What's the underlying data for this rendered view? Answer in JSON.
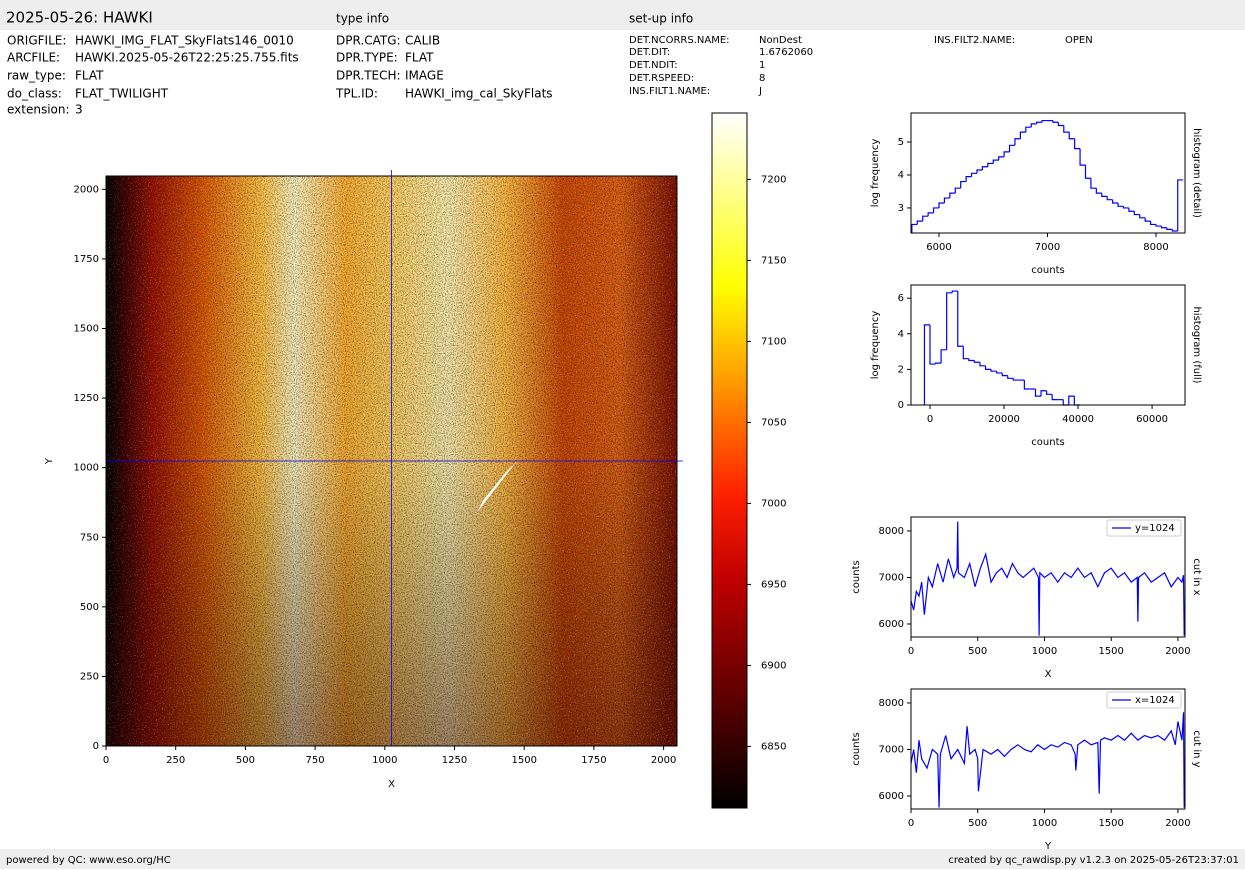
{
  "header": {
    "title": "2025-05-26: HAWKI",
    "type_info_title": "type info",
    "setup_info_title": "set-up info"
  },
  "file_info": [
    {
      "key": "ORIGFILE:",
      "value": "HAWKI_IMG_FLAT_SkyFlats146_0010"
    },
    {
      "key": "ARCFILE:",
      "value": "HAWKI.2025-05-26T22:25:25.755.fits"
    },
    {
      "key": "raw_type:",
      "value": "FLAT"
    },
    {
      "key": "do_class:",
      "value": "FLAT_TWILIGHT"
    },
    {
      "key": "extension:",
      "value": "3"
    }
  ],
  "type_info": [
    {
      "key": "DPR.CATG:",
      "value": "CALIB"
    },
    {
      "key": "DPR.TYPE:",
      "value": "FLAT"
    },
    {
      "key": "DPR.TECH:",
      "value": "IMAGE"
    },
    {
      "key": "TPL.ID:",
      "value": "HAWKI_img_cal_SkyFlats"
    }
  ],
  "setup_info": [
    {
      "key": "DET.NCORRS.NAME:",
      "value": "NonDest"
    },
    {
      "key": "DET.DIT:",
      "value": "1.6762060"
    },
    {
      "key": "DET.NDIT:",
      "value": "1"
    },
    {
      "key": "DET.RSPEED:",
      "value": "8"
    },
    {
      "key": "INS.FILT1.NAME:",
      "value": "J"
    },
    {
      "key": "INS.FILT2.NAME:",
      "value": "OPEN"
    }
  ],
  "chart_data": [
    {
      "type": "image",
      "xlabel": "X",
      "ylabel": "Y",
      "xlim": [
        0,
        2048
      ],
      "ylim": [
        0,
        2048
      ],
      "xticks": [
        0,
        250,
        500,
        750,
        1000,
        1250,
        1500,
        1750,
        2000
      ],
      "yticks": [
        0,
        250,
        500,
        750,
        1000,
        1250,
        1500,
        1750,
        2000
      ],
      "crosshair_x": 1024,
      "crosshair_y": 1024,
      "crosshair_color": "#0000ff",
      "colormap": "hot",
      "zlim": [
        6812,
        7241
      ],
      "zticks": [
        6850,
        6900,
        6950,
        7000,
        7050,
        7100,
        7150,
        7200
      ]
    },
    {
      "type": "histogram",
      "xlabel": "counts",
      "ylabel": "log frequency",
      "side_label": "histogram (detail)",
      "color": "#0000ff",
      "xlim": [
        5742,
        8267
      ],
      "ylim": [
        2.24,
        5.88
      ],
      "xticks": [
        6000,
        7000,
        8000
      ],
      "yticks": [
        3,
        4,
        5
      ],
      "bins": [
        5750,
        5800,
        5850,
        5900,
        5950,
        6000,
        6050,
        6100,
        6150,
        6200,
        6250,
        6300,
        6350,
        6400,
        6450,
        6500,
        6550,
        6600,
        6650,
        6700,
        6750,
        6800,
        6850,
        6900,
        6950,
        7000,
        7050,
        7100,
        7150,
        7200,
        7250,
        7300,
        7350,
        7400,
        7450,
        7500,
        7550,
        7600,
        7650,
        7700,
        7750,
        7800,
        7850,
        7900,
        7950,
        8000,
        8050,
        8100,
        8150,
        8200,
        8250
      ],
      "counts": [
        2.5,
        2.6,
        2.75,
        2.85,
        3.0,
        3.15,
        3.3,
        3.45,
        3.6,
        3.8,
        3.95,
        4.05,
        4.15,
        4.25,
        4.35,
        4.45,
        4.55,
        4.7,
        4.9,
        5.1,
        5.3,
        5.45,
        5.55,
        5.6,
        5.65,
        5.65,
        5.6,
        5.5,
        5.3,
        5.1,
        4.8,
        4.3,
        3.9,
        3.6,
        3.45,
        3.35,
        3.25,
        3.15,
        3.05,
        3.0,
        2.9,
        2.8,
        2.7,
        2.6,
        2.5,
        2.45,
        2.4,
        2.35,
        2.3,
        3.85
      ]
    },
    {
      "type": "histogram",
      "xlabel": "counts",
      "ylabel": "log frequency",
      "side_label": "histogram (full)",
      "color": "#0000ff",
      "xlim": [
        -5135,
        68900
      ],
      "ylim": [
        0,
        6.74
      ],
      "xticks": [
        0,
        20000,
        40000,
        60000
      ],
      "yticks": [
        0,
        2,
        4,
        6
      ],
      "bins": [
        -1500,
        0,
        1500,
        3000,
        4500,
        6000,
        7500,
        9000,
        10500,
        12000,
        13500,
        15000,
        16500,
        18000,
        19500,
        21000,
        22500,
        24000,
        25500,
        27000,
        28500,
        30000,
        31500,
        33000,
        34500,
        36000,
        37500,
        39000,
        40500
      ],
      "counts": [
        4.5,
        2.3,
        2.35,
        3.1,
        6.3,
        6.4,
        3.3,
        2.6,
        2.5,
        2.4,
        2.2,
        2.0,
        1.9,
        1.8,
        1.65,
        1.5,
        1.4,
        1.4,
        0.9,
        0.9,
        0.5,
        0.8,
        0.6,
        0.3,
        0.3,
        0,
        0.5,
        0
      ]
    },
    {
      "type": "line",
      "xlabel": "X",
      "ylabel": "counts",
      "side_label": "cut in x",
      "legend": "upper right",
      "xlim": [
        0,
        2053
      ],
      "ylim": [
        5720,
        8300
      ],
      "xticks": [
        0,
        500,
        1000,
        1500,
        2000
      ],
      "yticks": [
        6000,
        7000,
        8000
      ],
      "x": [
        0,
        20,
        40,
        60,
        80,
        100,
        130,
        160,
        200,
        240,
        280,
        320,
        345,
        350,
        355,
        400,
        440,
        480,
        520,
        560,
        600,
        640,
        680,
        720,
        760,
        800,
        840,
        880,
        920,
        955,
        960,
        965,
        1000,
        1050,
        1100,
        1150,
        1200,
        1250,
        1300,
        1350,
        1400,
        1450,
        1500,
        1550,
        1600,
        1650,
        1695,
        1700,
        1705,
        1750,
        1800,
        1850,
        1900,
        1950,
        2000,
        2030,
        2042,
        2047
      ],
      "series": [
        {
          "name": "y=1024",
          "color": "#0000ff",
          "values": [
            6500,
            6300,
            6700,
            6600,
            6900,
            6200,
            7000,
            6800,
            7300,
            6900,
            7400,
            7000,
            7200,
            8200,
            7100,
            7000,
            7300,
            6800,
            7200,
            7500,
            6900,
            7100,
            7200,
            7000,
            7300,
            7100,
            7000,
            7100,
            7200,
            7000,
            5750,
            7100,
            7000,
            7100,
            6900,
            7100,
            7000,
            7200,
            7000,
            7100,
            6800,
            7100,
            7200,
            7000,
            7100,
            6900,
            7000,
            6050,
            7000,
            7100,
            6900,
            7000,
            7100,
            6800,
            7000,
            6900,
            7050,
            5750
          ]
        }
      ]
    },
    {
      "type": "line",
      "xlabel": "Y",
      "ylabel": "counts",
      "side_label": "cut in y",
      "legend": "upper right",
      "xlim": [
        0,
        2053
      ],
      "ylim": [
        5720,
        8300
      ],
      "xticks": [
        0,
        500,
        1000,
        1500,
        2000
      ],
      "yticks": [
        6000,
        7000,
        8000
      ],
      "x": [
        0,
        20,
        40,
        60,
        80,
        120,
        160,
        200,
        210,
        220,
        260,
        300,
        350,
        400,
        420,
        440,
        480,
        500,
        505,
        540,
        600,
        650,
        700,
        750,
        800,
        850,
        900,
        950,
        1000,
        1050,
        1100,
        1150,
        1200,
        1230,
        1235,
        1250,
        1300,
        1350,
        1400,
        1410,
        1420,
        1450,
        1500,
        1550,
        1600,
        1650,
        1700,
        1750,
        1800,
        1850,
        1900,
        1950,
        1980,
        2000,
        2030,
        2042,
        2047
      ],
      "series": [
        {
          "name": "x=1024",
          "color": "#0000ff",
          "values": [
            6700,
            7000,
            6500,
            7200,
            6800,
            6600,
            7000,
            6900,
            5750,
            6900,
            7300,
            6800,
            7000,
            6700,
            7500,
            6900,
            7000,
            6800,
            6100,
            7000,
            6900,
            7000,
            6850,
            7000,
            7100,
            7000,
            6950,
            7100,
            7000,
            7100,
            7050,
            7150,
            7100,
            6900,
            6550,
            7100,
            7200,
            7100,
            7150,
            6050,
            7200,
            7250,
            7200,
            7300,
            7200,
            7350,
            7200,
            7300,
            7250,
            7300,
            7200,
            7400,
            7100,
            7600,
            7200,
            7800,
            5750
          ]
        }
      ]
    }
  ],
  "footer": {
    "left": "powered by QC: www.eso.org/HC",
    "right": "created by qc_rawdisp.py v1.2.3 on 2025-05-26T23:37:01"
  }
}
